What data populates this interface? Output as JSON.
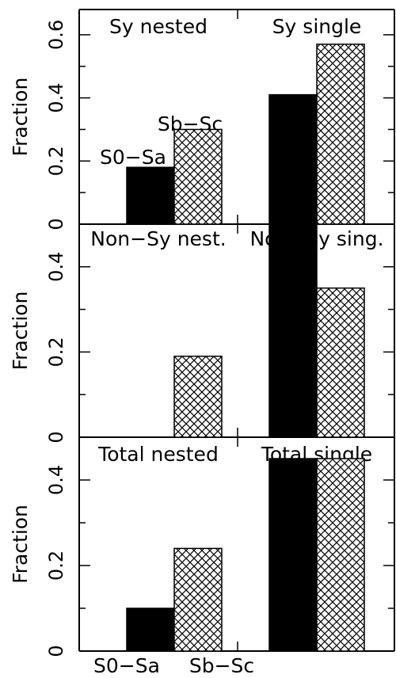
{
  "chart_data": [
    {
      "type": "bar",
      "ylabel": "Fraction",
      "ylim": [
        0,
        0.68
      ],
      "yticks": [
        0,
        0.2,
        0.4,
        0.6
      ],
      "ytick_labels": [
        "0",
        "0.2",
        "0.4",
        "0.6"
      ],
      "categories": [
        "nested",
        "single"
      ],
      "group_labels": [
        "Sy nested",
        "Sy single"
      ],
      "series": [
        {
          "name": "S0−Sa",
          "fill": "solid",
          "values": [
            0.18,
            0.41
          ]
        },
        {
          "name": "Sb−Sc",
          "fill": "crosshatch",
          "values": [
            0.3,
            0.57
          ]
        }
      ],
      "legend": {
        "placement": "on-bars",
        "items": [
          "S0−Sa",
          "Sb−Sc"
        ]
      },
      "grid": false
    },
    {
      "type": "bar",
      "ylabel": "Fraction",
      "ylim": [
        0,
        0.5
      ],
      "yticks": [
        0,
        0.2,
        0.4
      ],
      "ytick_labels": [
        "0",
        "0.2",
        "0.4"
      ],
      "categories": [
        "nested",
        "single"
      ],
      "group_labels": [
        "Non−Sy nest.",
        "Non−Sy sing."
      ],
      "series": [
        {
          "name": "S0−Sa",
          "fill": "solid",
          "values": [
            0.0,
            0.5
          ]
        },
        {
          "name": "Sb−Sc",
          "fill": "crosshatch",
          "values": [
            0.19,
            0.35
          ]
        }
      ],
      "grid": false
    },
    {
      "type": "bar",
      "ylabel": "Fraction",
      "ylim": [
        0,
        0.5
      ],
      "yticks": [
        0,
        0.2,
        0.4
      ],
      "ytick_labels": [
        "0",
        "0.2",
        "0.4"
      ],
      "categories": [
        "nested",
        "single"
      ],
      "group_labels": [
        "Total nested",
        "Total single"
      ],
      "series": [
        {
          "name": "S0−Sa",
          "fill": "solid",
          "values": [
            0.1,
            0.45
          ]
        },
        {
          "name": "Sb−Sc",
          "fill": "crosshatch",
          "values": [
            0.24,
            0.45
          ]
        }
      ],
      "x_tick_labels": [
        "S0−Sa",
        "Sb−Sc"
      ],
      "grid": false
    }
  ]
}
